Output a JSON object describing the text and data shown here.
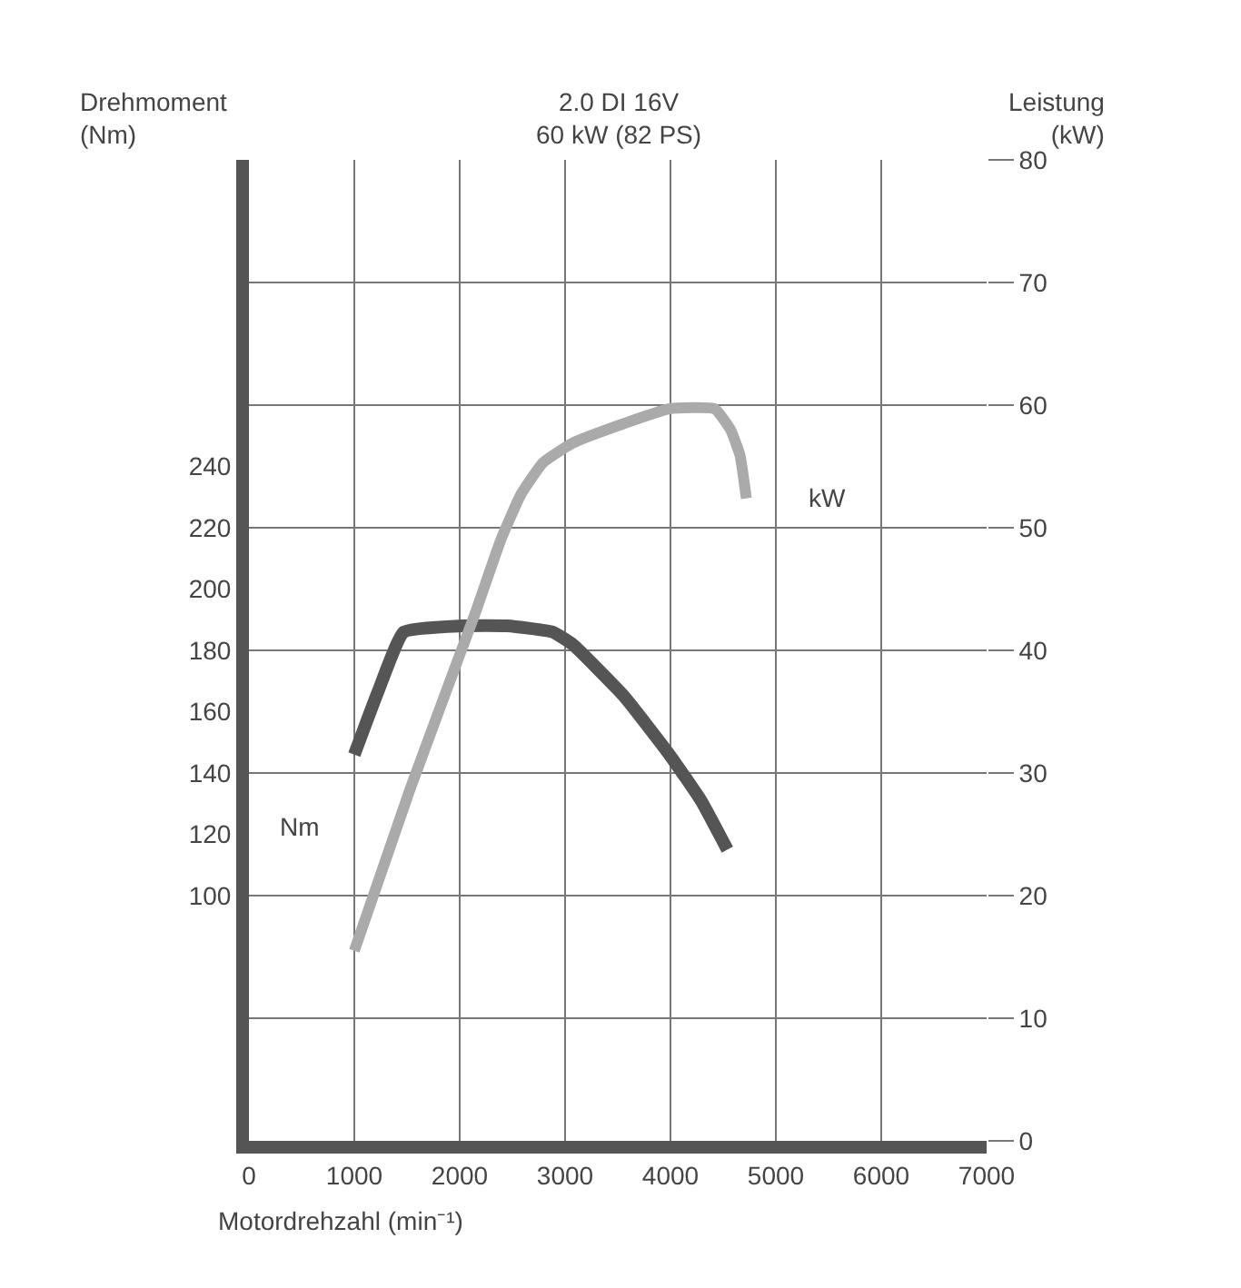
{
  "chart_data": {
    "type": "line",
    "title": "2.0 DI 16V",
    "subtitle": "60 kW (82 PS)",
    "xlabel": "Motordrehzahl (min⁻¹)",
    "ylabel": "Drehmoment\n(Nm)",
    "y2label": "Leistung\n(kW)",
    "xlim": [
      0,
      7000
    ],
    "xticks": [
      0,
      1000,
      2000,
      3000,
      4000,
      5000,
      6000,
      7000
    ],
    "ylim": [
      20,
      340
    ],
    "yticks": [
      100,
      120,
      140,
      160,
      180,
      200,
      220,
      240
    ],
    "y2lim": [
      0,
      80
    ],
    "y2ticks": [
      0,
      10,
      20,
      30,
      40,
      50,
      60,
      70,
      80
    ],
    "grid": true,
    "legend": false,
    "marker": "none",
    "line_style": "solid",
    "series": [
      {
        "name": "Nm",
        "color": "#555555",
        "axis": "y",
        "x": [
          1000,
          1230,
          1470,
          2020,
          2450,
          2880,
          3070,
          3560,
          3990,
          4290,
          4540
        ],
        "values": [
          146,
          167,
          186,
          188,
          188,
          186,
          182,
          165,
          146,
          131,
          115
        ]
      },
      {
        "name": "kW",
        "color": "#aaaaaa",
        "axis": "y2",
        "x": [
          1000,
          1530,
          1990,
          2150,
          2390,
          2580,
          2790,
          3070,
          3560,
          3990,
          4420,
          4570,
          4660,
          4720
        ],
        "values": [
          15.5,
          28.7,
          39.4,
          43.1,
          49,
          52.7,
          55.3,
          56.9,
          58.5,
          59.7,
          59.7,
          58,
          55.9,
          52.4
        ]
      }
    ]
  }
}
